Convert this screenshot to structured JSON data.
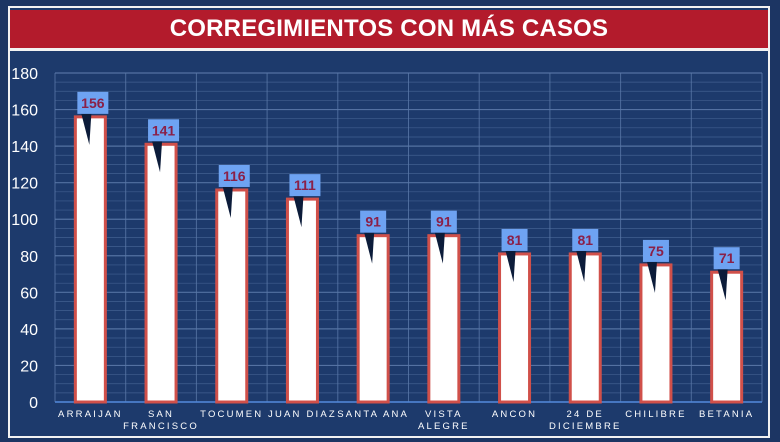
{
  "colors": {
    "background": "#1d3a6c",
    "title_bar": "#b31b2c",
    "bar_fill": "#ffffff",
    "bar_border": "#d0504a",
    "callout_fill": "#6ea3f2",
    "callout_text": "#8a2048",
    "grid": "#5a78a8",
    "axis_text": "#ffffff"
  },
  "chart_data": {
    "type": "bar",
    "title": "CORREGIMIENTOS CON MÁS CASOS",
    "categories": [
      [
        "ARRAIJAN"
      ],
      [
        "SAN",
        "FRANCISCO"
      ],
      [
        "TOCUMEN"
      ],
      [
        "JUAN DIAZ"
      ],
      [
        "SANTA ANA"
      ],
      [
        "VISTA",
        "ALEGRE"
      ],
      [
        "ANCON"
      ],
      [
        "24 DE",
        "DICIEMBRE"
      ],
      [
        "CHILIBRE"
      ],
      [
        "BETANIA"
      ]
    ],
    "values": [
      156,
      141,
      116,
      111,
      91,
      91,
      81,
      81,
      75,
      71
    ],
    "ylim": [
      0,
      180
    ],
    "yticks": [
      0,
      20,
      40,
      60,
      80,
      100,
      120,
      140,
      160,
      180
    ],
    "grid": true,
    "data_labels": "callouts"
  }
}
